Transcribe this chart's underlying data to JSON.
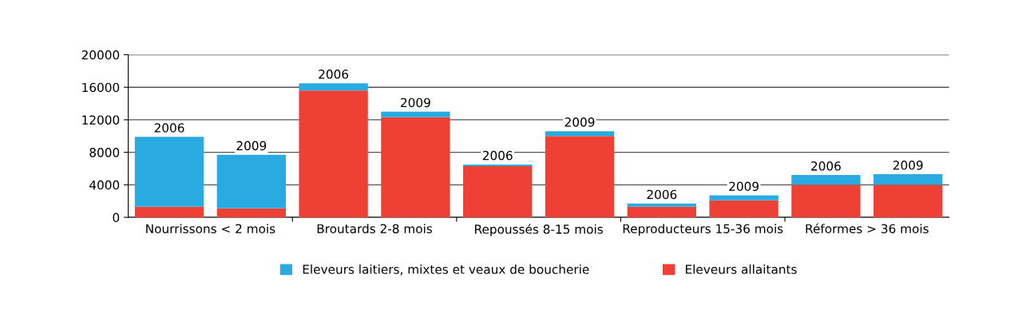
{
  "chart_data": {
    "type": "bar",
    "stacked": true,
    "categories": [
      "2006",
      "2009",
      "2006",
      "2009",
      "2006",
      "2009",
      "2006",
      "2009",
      "2006",
      "2009"
    ],
    "annotations": [
      "Nourrissons < 2 mois",
      "Broutards 2-8 mois",
      "Repoussés 8-15 mois",
      "Reproducteurs 15-36 mois",
      "Réformes > 36 mois"
    ],
    "series": [
      {
        "name": "Eleveurs allaitants",
        "color": "#ee4035",
        "values": [
          1300,
          1100,
          15600,
          12300,
          6300,
          10000,
          1300,
          2100,
          4000,
          4000
        ]
      },
      {
        "name": "Eleveurs laitiers, mixtes et veaux de boucherie",
        "color": "#29abe2",
        "values": [
          8600,
          6600,
          900,
          700,
          200,
          600,
          400,
          600,
          1200,
          1300
        ]
      }
    ],
    "ylim": [
      0,
      20000
    ],
    "yticks": [
      0,
      4000,
      8000,
      12000,
      16000,
      20000
    ],
    "grid": "y",
    "legend": "bottom"
  }
}
